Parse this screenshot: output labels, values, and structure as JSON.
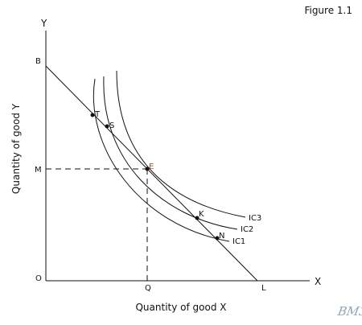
{
  "figure_label": "Figure 1.1",
  "axes": {
    "y_axis_letter": "Y",
    "x_axis_letter": "X",
    "origin": "O",
    "x_label": "Quantity of good X",
    "y_label": "Quantity of good Y"
  },
  "budget_line": {
    "start_label": "B",
    "end_label": "L"
  },
  "equilibrium": {
    "point_label": "E",
    "x_level_label": "Q",
    "y_level_label": "M",
    "point_color": "#a0522d"
  },
  "curves": [
    "IC1",
    "IC2",
    "IC3"
  ],
  "points": [
    "T",
    "S",
    "K",
    "N"
  ],
  "watermark": "BM3"
}
